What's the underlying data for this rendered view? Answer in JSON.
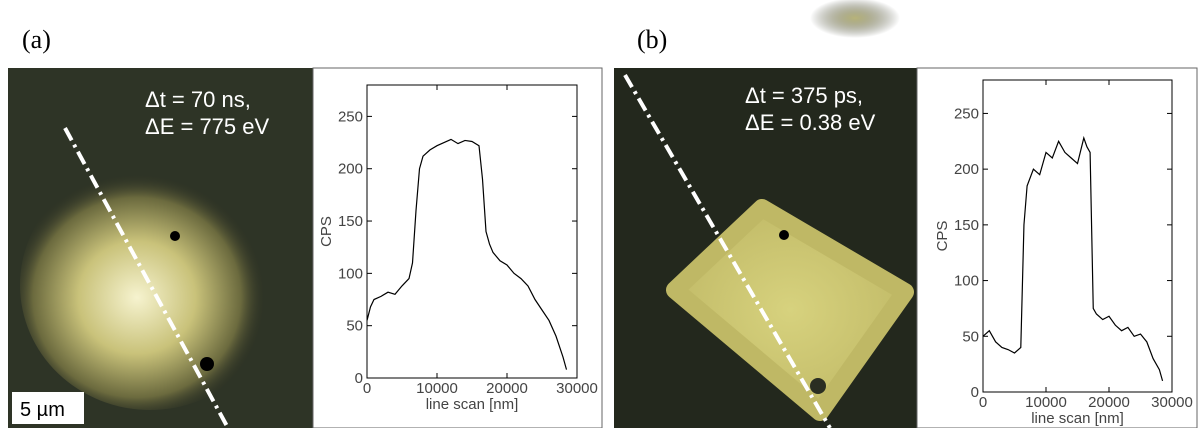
{
  "panels": [
    {
      "label": "(a)",
      "annotation": [
        "Δt = 70 ns,",
        "ΔE = 775 eV"
      ],
      "scale_bar": "5 µm"
    },
    {
      "label": "(b)",
      "annotation": [
        "Δt = 375 ps,",
        "ΔE = 0.38 eV"
      ]
    }
  ],
  "chart_data": [
    {
      "type": "line",
      "xlabel": "line scan [nm]",
      "ylabel": "CPS",
      "color": "#000000",
      "x": [
        0,
        500,
        1000,
        2000,
        3000,
        4000,
        5000,
        6000,
        6500,
        7000,
        7500,
        8000,
        9000,
        10000,
        11000,
        12000,
        13000,
        14000,
        15000,
        16000,
        16500,
        17000,
        17500,
        18000,
        19000,
        20000,
        21000,
        22000,
        23000,
        24000,
        25000,
        26000,
        27000,
        28000,
        28500
      ],
      "values": [
        55,
        68,
        75,
        78,
        82,
        80,
        88,
        95,
        110,
        160,
        200,
        212,
        218,
        222,
        225,
        228,
        224,
        227,
        226,
        222,
        190,
        140,
        128,
        120,
        112,
        108,
        100,
        95,
        88,
        75,
        65,
        55,
        40,
        20,
        8
      ],
      "xlim": [
        0,
        30000
      ],
      "xticks": [
        0,
        10000,
        20000,
        30000
      ],
      "ylim": [
        0,
        280
      ],
      "yticks": [
        0,
        50,
        100,
        150,
        200,
        250
      ]
    },
    {
      "type": "line",
      "xlabel": "line scan [nm]",
      "ylabel": "CPS",
      "color": "#000000",
      "x": [
        0,
        1000,
        2000,
        3000,
        4000,
        5000,
        6000,
        6500,
        7000,
        8000,
        9000,
        10000,
        11000,
        12000,
        13000,
        14000,
        15000,
        16000,
        16500,
        17000,
        17500,
        18000,
        19000,
        20000,
        21000,
        22000,
        23000,
        24000,
        25000,
        26000,
        27000,
        28000,
        28500
      ],
      "values": [
        50,
        55,
        45,
        40,
        38,
        35,
        40,
        150,
        185,
        200,
        195,
        215,
        210,
        225,
        215,
        210,
        205,
        228,
        220,
        215,
        75,
        70,
        65,
        68,
        60,
        55,
        58,
        50,
        52,
        45,
        30,
        20,
        10
      ],
      "xlim": [
        0,
        30000
      ],
      "xticks": [
        0,
        10000,
        20000,
        30000
      ],
      "ylim": [
        0,
        280
      ],
      "yticks": [
        0,
        50,
        100,
        150,
        200,
        250
      ]
    }
  ]
}
